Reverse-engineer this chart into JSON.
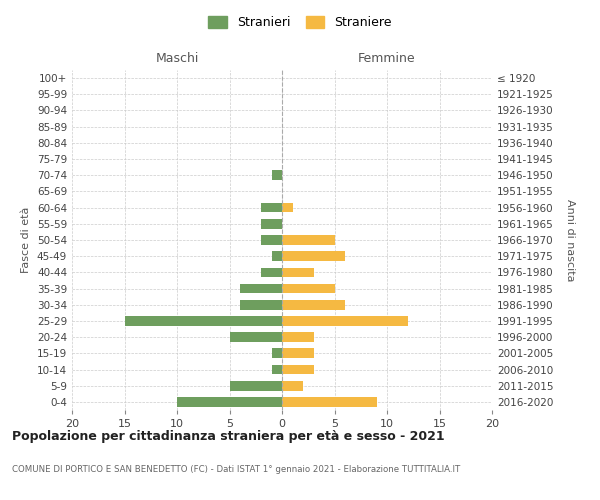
{
  "age_groups": [
    "100+",
    "95-99",
    "90-94",
    "85-89",
    "80-84",
    "75-79",
    "70-74",
    "65-69",
    "60-64",
    "55-59",
    "50-54",
    "45-49",
    "40-44",
    "35-39",
    "30-34",
    "25-29",
    "20-24",
    "15-19",
    "10-14",
    "5-9",
    "0-4"
  ],
  "birth_years": [
    "≤ 1920",
    "1921-1925",
    "1926-1930",
    "1931-1935",
    "1936-1940",
    "1941-1945",
    "1946-1950",
    "1951-1955",
    "1956-1960",
    "1961-1965",
    "1966-1970",
    "1971-1975",
    "1976-1980",
    "1981-1985",
    "1986-1990",
    "1991-1995",
    "1996-2000",
    "2001-2005",
    "2006-2010",
    "2011-2015",
    "2016-2020"
  ],
  "males": [
    0,
    0,
    0,
    0,
    0,
    0,
    1,
    0,
    2,
    2,
    2,
    1,
    2,
    4,
    4,
    15,
    5,
    1,
    1,
    5,
    10
  ],
  "females": [
    0,
    0,
    0,
    0,
    0,
    0,
    0,
    0,
    1,
    0,
    5,
    6,
    3,
    5,
    6,
    12,
    3,
    3,
    3,
    2,
    9
  ],
  "color_males": "#6e9e5e",
  "color_females": "#f5b942",
  "title": "Popolazione per cittadinanza straniera per età e sesso - 2021",
  "subtitle": "COMUNE DI PORTICO E SAN BENEDETTO (FC) - Dati ISTAT 1° gennaio 2021 - Elaborazione TUTTITALIA.IT",
  "xlabel_left": "Maschi",
  "xlabel_right": "Femmine",
  "ylabel_left": "Fasce di età",
  "ylabel_right": "Anni di nascita",
  "legend_males": "Stranieri",
  "legend_females": "Straniere",
  "xlim": 20,
  "background_color": "#ffffff",
  "grid_color": "#cccccc"
}
